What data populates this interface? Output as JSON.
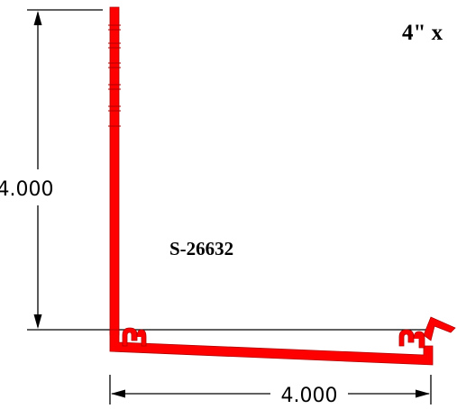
{
  "diagram": {
    "title": "4\" x",
    "part_number": "S-26632",
    "vertical_dimension": "4.000",
    "horizontal_dimension": "4.000",
    "colors": {
      "profile": "#ff0000",
      "outline": "#b00000",
      "lines": "#000000",
      "background": "#ffffff"
    }
  }
}
